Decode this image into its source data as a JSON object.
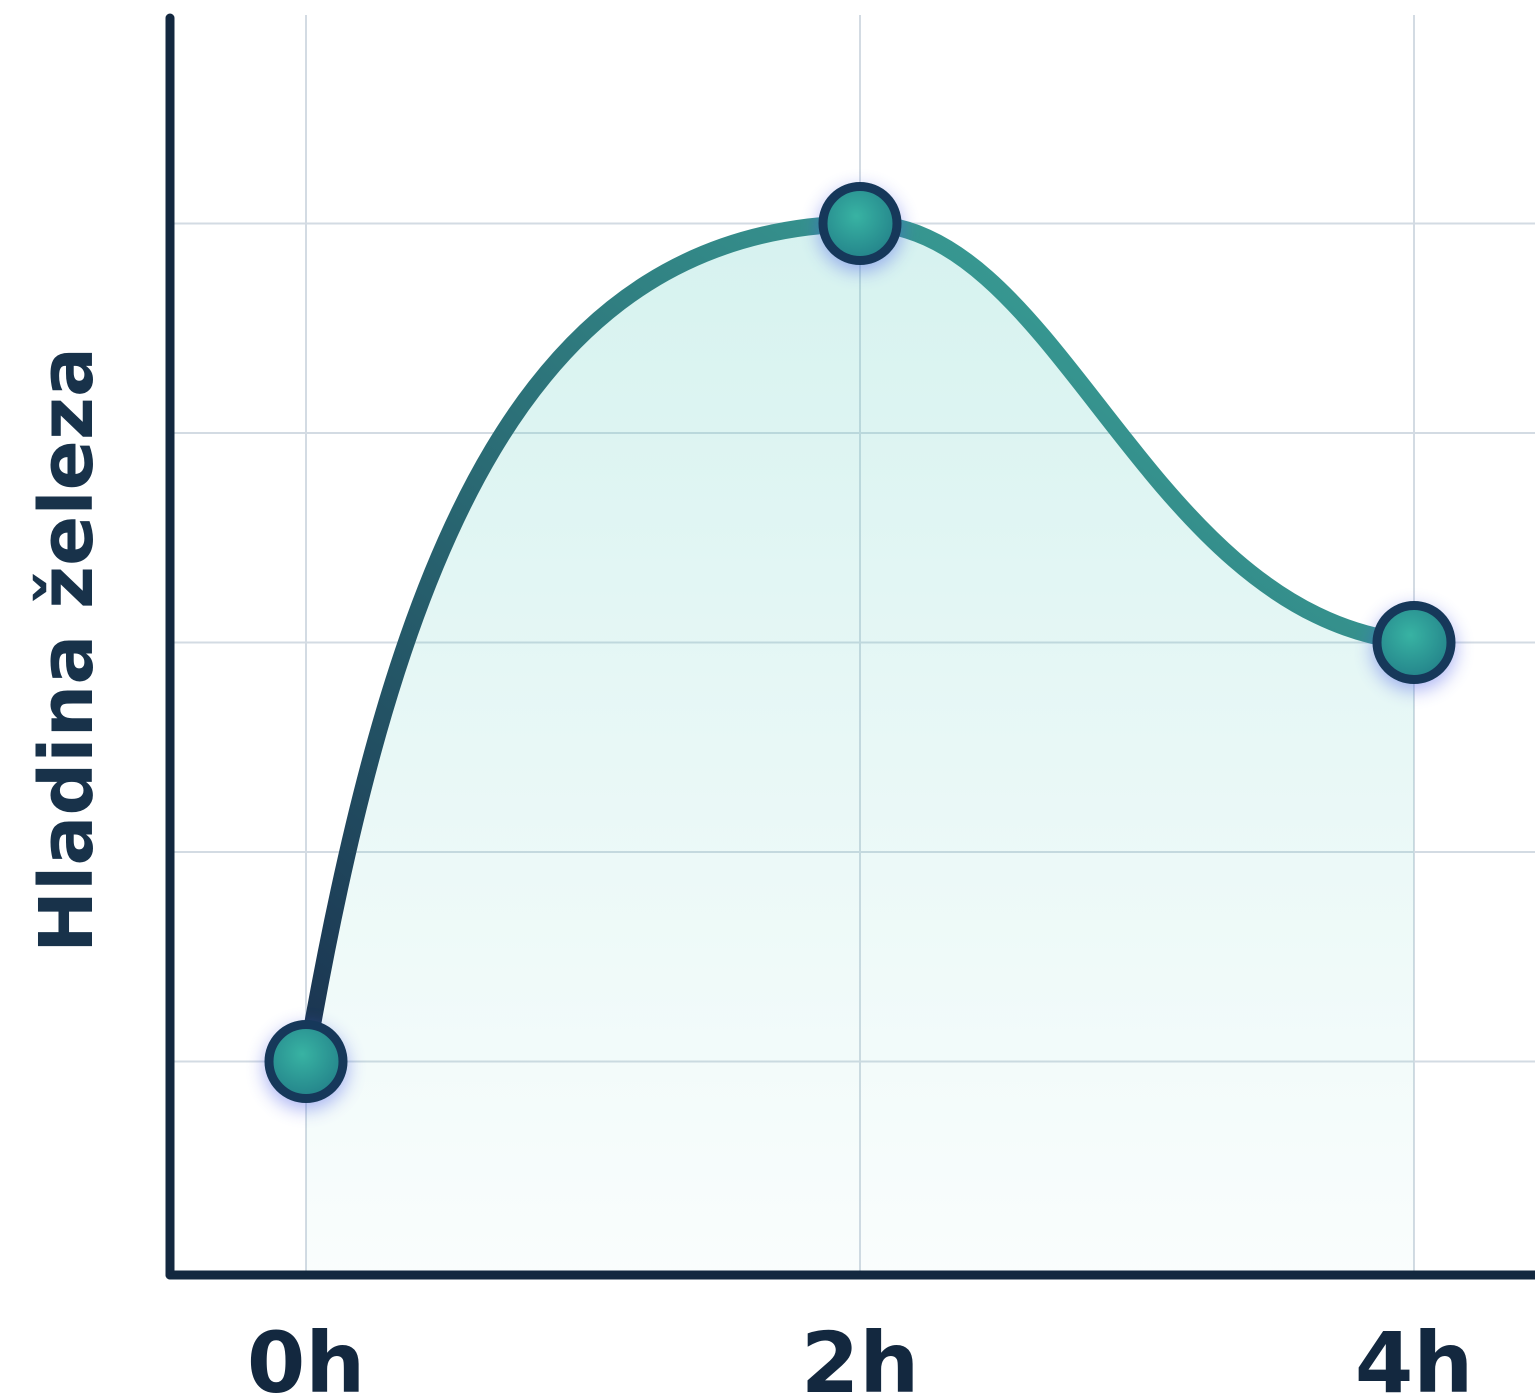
{
  "chart_data": {
    "type": "line",
    "title": "",
    "xlabel": "",
    "ylabel": "Hladina železa",
    "categories": [
      "0h",
      "2h",
      "4h"
    ],
    "series": [
      {
        "values": [
          1,
          5,
          3
        ]
      }
    ],
    "ylim": [
      0,
      6
    ],
    "grid": true,
    "area_fill": true,
    "legend": "none",
    "colors": {
      "line_start": "#1a3350",
      "line_end": "#3fb3a3",
      "marker_fill": "#2a9e91",
      "marker_ring": "#16385a",
      "marker_glow": "#4a5ce6",
      "fill": "#54c9bd",
      "axis": "#13283f",
      "grid": "#d3dbe3",
      "text": "#13283f"
    }
  }
}
